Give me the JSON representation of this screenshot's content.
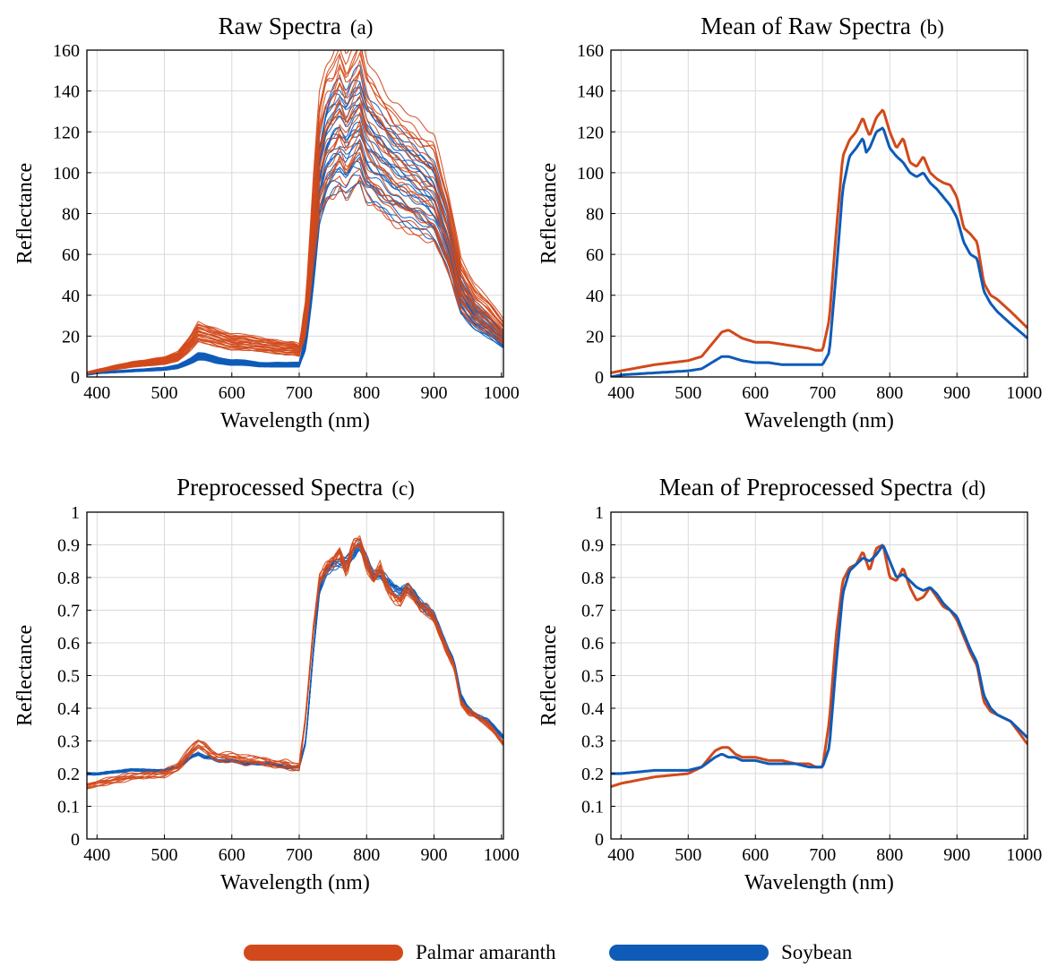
{
  "colors": {
    "palmar": "#d2491b",
    "soybean": "#0e5bb8",
    "grid": "#d9d9d9",
    "axis": "#000000"
  },
  "legend": [
    {
      "name": "Palmar amaranth",
      "color": "#d2491b"
    },
    {
      "name": "Soybean",
      "color": "#0e5bb8"
    }
  ],
  "chart_data": [
    {
      "id": "a",
      "type": "line",
      "title": "Raw Spectra",
      "tag": "(a)",
      "xlabel": "Wavelength (nm)",
      "ylabel": "Reflectance",
      "xlim": [
        385,
        1003
      ],
      "ylim": [
        0,
        160
      ],
      "xticks": [
        400,
        500,
        600,
        700,
        800,
        900,
        1000
      ],
      "yticks": [
        0,
        20,
        40,
        60,
        80,
        100,
        120,
        140,
        160
      ],
      "grid": true,
      "style": "bundle",
      "series": [
        {
          "name": "Palmar amaranth",
          "color": "#d2491b",
          "bundle": {
            "count": 24,
            "spread_low": 0.22,
            "spread_high": 0.28
          },
          "x": [
            385,
            400,
            450,
            500,
            520,
            540,
            550,
            560,
            580,
            600,
            620,
            640,
            660,
            680,
            690,
            700,
            710,
            720,
            730,
            740,
            750,
            760,
            770,
            780,
            790,
            800,
            820,
            840,
            860,
            880,
            900,
            920,
            940,
            960,
            980,
            1003
          ],
          "y": [
            2,
            3,
            6,
            8,
            10,
            17,
            22,
            21,
            19,
            17,
            17,
            16,
            15,
            14,
            14,
            13,
            30,
            72,
            108,
            120,
            122,
            130,
            122,
            128,
            134,
            120,
            112,
            104,
            100,
            95,
            92,
            72,
            45,
            35,
            30,
            22
          ]
        },
        {
          "name": "Soybean",
          "color": "#0e5bb8",
          "bundle": {
            "count": 24,
            "spread_low": 0.18,
            "spread_high": 0.22
          },
          "x": [
            385,
            400,
            450,
            500,
            520,
            540,
            550,
            560,
            580,
            600,
            620,
            640,
            660,
            680,
            690,
            700,
            710,
            720,
            730,
            740,
            750,
            760,
            770,
            780,
            790,
            800,
            820,
            840,
            860,
            880,
            900,
            920,
            940,
            960,
            980,
            1003
          ],
          "y": [
            1,
            2,
            3,
            4,
            5,
            8,
            10,
            10,
            8,
            7,
            7,
            6,
            6,
            6,
            6,
            6,
            18,
            52,
            95,
            110,
            116,
            118,
            114,
            120,
            122,
            112,
            106,
            100,
            96,
            92,
            86,
            68,
            40,
            30,
            25,
            18
          ]
        }
      ]
    },
    {
      "id": "b",
      "type": "line",
      "title": "Mean of Raw Spectra",
      "tag": "(b)",
      "xlabel": "Wavelength (nm)",
      "ylabel": "Reflectance",
      "xlim": [
        385,
        1005
      ],
      "ylim": [
        0,
        160
      ],
      "xticks": [
        400,
        500,
        600,
        700,
        800,
        900,
        1000
      ],
      "yticks": [
        0,
        20,
        40,
        60,
        80,
        100,
        120,
        140,
        160
      ],
      "grid": true,
      "style": "mean",
      "series": [
        {
          "name": "Palmar amaranth",
          "color": "#d2491b",
          "x": [
            385,
            400,
            450,
            500,
            520,
            540,
            550,
            560,
            570,
            580,
            600,
            620,
            640,
            660,
            680,
            690,
            700,
            710,
            720,
            730,
            740,
            750,
            760,
            765,
            770,
            780,
            790,
            800,
            810,
            820,
            830,
            840,
            850,
            860,
            870,
            880,
            890,
            900,
            910,
            920,
            930,
            940,
            950,
            960,
            980,
            1005
          ],
          "y": [
            2,
            3,
            6,
            8,
            10,
            18,
            22,
            23,
            21,
            19,
            17,
            17,
            16,
            15,
            14,
            13,
            13,
            28,
            70,
            108,
            116,
            120,
            127,
            122,
            118,
            127,
            131,
            120,
            112,
            117,
            105,
            103,
            108,
            100,
            97,
            95,
            94,
            88,
            73,
            70,
            66,
            46,
            40,
            38,
            32,
            24
          ]
        },
        {
          "name": "Soybean",
          "color": "#0e5bb8",
          "x": [
            385,
            400,
            450,
            500,
            520,
            540,
            550,
            560,
            570,
            580,
            600,
            620,
            640,
            660,
            680,
            690,
            700,
            710,
            720,
            730,
            740,
            750,
            760,
            765,
            770,
            780,
            790,
            800,
            810,
            820,
            830,
            840,
            850,
            860,
            870,
            880,
            890,
            900,
            910,
            920,
            930,
            940,
            950,
            960,
            980,
            1005
          ],
          "y": [
            0,
            1,
            2,
            3,
            4,
            8,
            10,
            10,
            9,
            8,
            7,
            7,
            6,
            6,
            6,
            6,
            6,
            12,
            50,
            92,
            108,
            112,
            117,
            110,
            112,
            120,
            122,
            112,
            108,
            105,
            100,
            98,
            100,
            95,
            92,
            88,
            84,
            78,
            66,
            60,
            58,
            42,
            36,
            32,
            26,
            19
          ]
        }
      ]
    },
    {
      "id": "c",
      "type": "line",
      "title": "Preprocessed Spectra",
      "tag": "(c)",
      "xlabel": "Wavelength (nm)",
      "ylabel": "Reflectance",
      "xlim": [
        385,
        1003
      ],
      "ylim": [
        0,
        1
      ],
      "xticks": [
        400,
        500,
        600,
        700,
        800,
        900,
        1000
      ],
      "yticks": [
        0,
        0.1,
        0.2,
        0.3,
        0.4,
        0.5,
        0.6,
        0.7,
        0.8,
        0.9,
        1
      ],
      "grid": true,
      "style": "bundle",
      "series": [
        {
          "name": "Palmar amaranth",
          "color": "#d2491b",
          "bundle": {
            "count": 10,
            "spread_low": 0.05,
            "spread_high": 0.01
          },
          "x": [
            385,
            400,
            450,
            500,
            520,
            540,
            550,
            560,
            570,
            580,
            600,
            620,
            640,
            660,
            680,
            690,
            700,
            710,
            720,
            730,
            740,
            750,
            760,
            770,
            780,
            790,
            800,
            810,
            820,
            830,
            840,
            850,
            860,
            870,
            880,
            890,
            900,
            910,
            920,
            930,
            940,
            950,
            960,
            980,
            1003
          ],
          "y": [
            0.16,
            0.17,
            0.19,
            0.2,
            0.22,
            0.27,
            0.29,
            0.28,
            0.26,
            0.25,
            0.25,
            0.24,
            0.24,
            0.23,
            0.23,
            0.22,
            0.22,
            0.38,
            0.62,
            0.79,
            0.83,
            0.85,
            0.88,
            0.82,
            0.9,
            0.91,
            0.84,
            0.79,
            0.83,
            0.77,
            0.74,
            0.73,
            0.77,
            0.74,
            0.71,
            0.7,
            0.67,
            0.62,
            0.57,
            0.53,
            0.42,
            0.39,
            0.38,
            0.35,
            0.29
          ]
        },
        {
          "name": "Soybean",
          "color": "#0e5bb8",
          "bundle": {
            "count": 10,
            "spread_low": 0.005,
            "spread_high": 0.005
          },
          "x": [
            385,
            400,
            450,
            500,
            520,
            540,
            550,
            560,
            570,
            580,
            600,
            620,
            640,
            660,
            680,
            690,
            700,
            710,
            720,
            730,
            740,
            750,
            760,
            770,
            780,
            790,
            800,
            810,
            820,
            830,
            840,
            850,
            860,
            870,
            880,
            890,
            900,
            910,
            920,
            930,
            940,
            950,
            960,
            980,
            1003
          ],
          "y": [
            0.2,
            0.2,
            0.21,
            0.21,
            0.22,
            0.25,
            0.26,
            0.25,
            0.25,
            0.24,
            0.24,
            0.23,
            0.23,
            0.23,
            0.22,
            0.22,
            0.22,
            0.3,
            0.55,
            0.76,
            0.82,
            0.84,
            0.85,
            0.85,
            0.87,
            0.9,
            0.85,
            0.8,
            0.81,
            0.79,
            0.77,
            0.76,
            0.77,
            0.75,
            0.72,
            0.7,
            0.68,
            0.63,
            0.58,
            0.54,
            0.44,
            0.4,
            0.38,
            0.36,
            0.31
          ]
        }
      ]
    },
    {
      "id": "d",
      "type": "line",
      "title": "Mean of Preprocessed Spectra",
      "tag": "(d)",
      "xlabel": "Wavelength (nm)",
      "ylabel": "Reflectance",
      "xlim": [
        385,
        1005
      ],
      "ylim": [
        0,
        1
      ],
      "xticks": [
        400,
        500,
        600,
        700,
        800,
        900,
        1000
      ],
      "yticks": [
        0,
        0.1,
        0.2,
        0.3,
        0.4,
        0.5,
        0.6,
        0.7,
        0.8,
        0.9,
        1
      ],
      "grid": true,
      "style": "mean",
      "series": [
        {
          "name": "Palmar amaranth",
          "color": "#d2491b",
          "x": [
            385,
            400,
            450,
            500,
            520,
            540,
            550,
            560,
            570,
            580,
            600,
            620,
            640,
            660,
            680,
            690,
            700,
            710,
            720,
            730,
            740,
            750,
            760,
            770,
            780,
            790,
            800,
            810,
            820,
            830,
            840,
            850,
            860,
            870,
            880,
            890,
            900,
            910,
            920,
            930,
            940,
            950,
            960,
            980,
            1005
          ],
          "y": [
            0.16,
            0.17,
            0.19,
            0.2,
            0.22,
            0.27,
            0.28,
            0.28,
            0.26,
            0.25,
            0.25,
            0.24,
            0.24,
            0.23,
            0.23,
            0.22,
            0.22,
            0.36,
            0.62,
            0.79,
            0.83,
            0.84,
            0.88,
            0.82,
            0.89,
            0.9,
            0.8,
            0.79,
            0.83,
            0.77,
            0.73,
            0.74,
            0.77,
            0.74,
            0.71,
            0.7,
            0.67,
            0.62,
            0.57,
            0.53,
            0.42,
            0.39,
            0.38,
            0.36,
            0.29
          ]
        },
        {
          "name": "Soybean",
          "color": "#0e5bb8",
          "x": [
            385,
            400,
            450,
            500,
            520,
            540,
            550,
            560,
            570,
            580,
            600,
            620,
            640,
            660,
            680,
            690,
            700,
            710,
            720,
            730,
            740,
            750,
            760,
            770,
            780,
            790,
            800,
            810,
            820,
            830,
            840,
            850,
            860,
            870,
            880,
            890,
            900,
            910,
            920,
            930,
            940,
            950,
            960,
            980,
            1005
          ],
          "y": [
            0.2,
            0.2,
            0.21,
            0.21,
            0.22,
            0.25,
            0.26,
            0.25,
            0.25,
            0.24,
            0.24,
            0.23,
            0.23,
            0.23,
            0.22,
            0.22,
            0.22,
            0.28,
            0.53,
            0.75,
            0.82,
            0.84,
            0.86,
            0.85,
            0.87,
            0.9,
            0.85,
            0.8,
            0.81,
            0.79,
            0.77,
            0.76,
            0.77,
            0.75,
            0.72,
            0.7,
            0.68,
            0.63,
            0.58,
            0.54,
            0.44,
            0.4,
            0.38,
            0.36,
            0.31
          ]
        }
      ]
    }
  ]
}
